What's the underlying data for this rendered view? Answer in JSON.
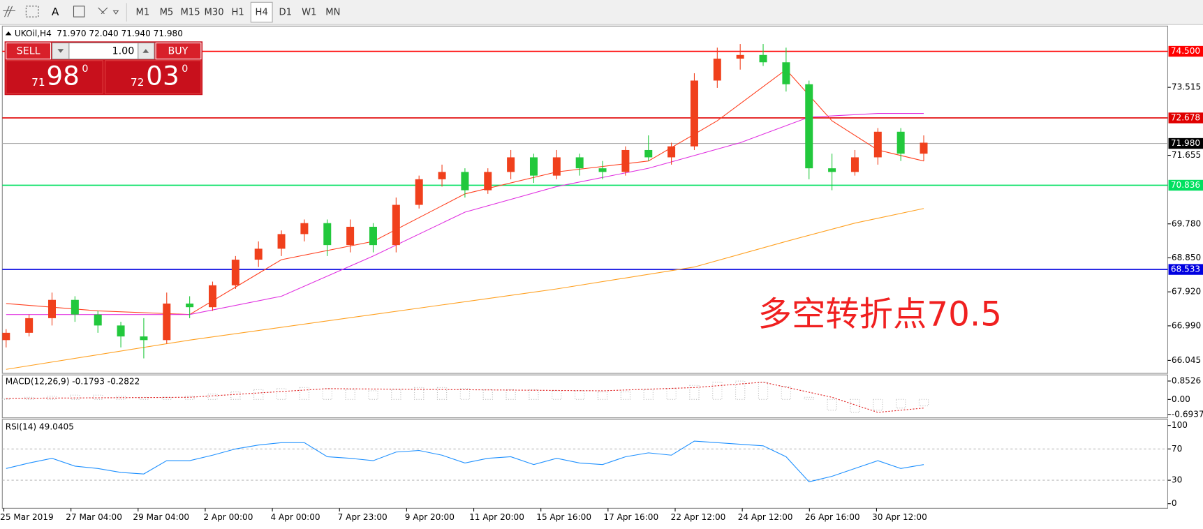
{
  "toolbar": {
    "timeframes": [
      "M1",
      "M5",
      "M15",
      "M30",
      "H1",
      "H4",
      "D1",
      "W1",
      "MN"
    ],
    "active_index": 5
  },
  "header": {
    "symbol": "UKOil,H4",
    "ohlc": "71.970 72.040 71.940 71.980"
  },
  "trade_panel": {
    "sell": "SELL",
    "buy": "BUY",
    "lot": "1.00",
    "sell_price": [
      "71",
      "98",
      "0"
    ],
    "buy_price": [
      "72",
      "03",
      "0"
    ]
  },
  "price_chart": {
    "ylim": [
      65.69,
      75.17
    ],
    "yticks": [
      73.515,
      71.655,
      {
        "value": 69.78,
        "label": "69.780"
      },
      {
        "value": 68.85,
        "label": "68.850"
      },
      {
        "value": 67.92,
        "label": "67.920"
      },
      {
        "value": 66.99,
        "label": "66.990"
      },
      66.045
    ],
    "levels": [
      {
        "value": 74.5,
        "label": "74.500",
        "color": "#ff0000"
      },
      {
        "value": 72.678,
        "label": "72.678",
        "color": "#e00000"
      },
      {
        "value": 71.98,
        "label": "71.980",
        "color": "#000000"
      },
      {
        "value": 70.836,
        "label": "70.836",
        "color": "#00e060"
      },
      {
        "value": 68.533,
        "label": "68.533",
        "color": "#0000e0"
      }
    ],
    "up_color": "#f0401c",
    "down_color": "#22c83c",
    "candles": [
      [
        66.6,
        66.9,
        66.4,
        66.8
      ],
      [
        66.8,
        67.3,
        66.7,
        67.2
      ],
      [
        67.2,
        67.9,
        67.0,
        67.7
      ],
      [
        67.7,
        67.8,
        67.1,
        67.3
      ],
      [
        67.3,
        67.4,
        66.8,
        67.0
      ],
      [
        67.0,
        67.1,
        66.4,
        66.7
      ],
      [
        66.7,
        67.2,
        66.1,
        66.6
      ],
      [
        66.6,
        67.9,
        66.5,
        67.6
      ],
      [
        67.6,
        67.8,
        67.2,
        67.5
      ],
      [
        67.5,
        68.2,
        67.4,
        68.1
      ],
      [
        68.1,
        68.9,
        68.0,
        68.8
      ],
      [
        68.8,
        69.3,
        68.6,
        69.1
      ],
      [
        69.1,
        69.6,
        68.9,
        69.5
      ],
      [
        69.5,
        69.9,
        69.3,
        69.8
      ],
      [
        69.8,
        69.9,
        68.9,
        69.2
      ],
      [
        69.2,
        69.9,
        69.0,
        69.7
      ],
      [
        69.7,
        69.8,
        69.0,
        69.2
      ],
      [
        69.2,
        70.5,
        69.0,
        70.3
      ],
      [
        70.3,
        71.1,
        70.2,
        71.0
      ],
      [
        71.0,
        71.4,
        70.8,
        71.2
      ],
      [
        71.2,
        71.3,
        70.5,
        70.7
      ],
      [
        70.7,
        71.3,
        70.6,
        71.2
      ],
      [
        71.2,
        71.8,
        71.0,
        71.6
      ],
      [
        71.6,
        71.7,
        70.9,
        71.1
      ],
      [
        71.1,
        71.8,
        71.0,
        71.6
      ],
      [
        71.6,
        71.7,
        71.1,
        71.3
      ],
      [
        71.3,
        71.5,
        71.0,
        71.2
      ],
      [
        71.2,
        71.9,
        71.1,
        71.8
      ],
      [
        71.8,
        72.2,
        71.5,
        71.6
      ],
      [
        71.6,
        72.0,
        71.4,
        71.9
      ],
      [
        71.9,
        73.9,
        71.8,
        73.7
      ],
      [
        73.7,
        74.6,
        73.5,
        74.3
      ],
      [
        74.3,
        74.7,
        74.0,
        74.4
      ],
      [
        74.4,
        74.7,
        74.1,
        74.2
      ],
      [
        74.2,
        74.6,
        73.4,
        73.6
      ],
      [
        73.6,
        73.7,
        71.0,
        71.3
      ],
      [
        71.3,
        71.7,
        70.7,
        71.2
      ],
      [
        71.2,
        71.8,
        71.1,
        71.6
      ],
      [
        71.6,
        72.4,
        71.4,
        72.3
      ],
      [
        72.3,
        72.4,
        71.5,
        71.7
      ],
      [
        71.7,
        72.2,
        71.5,
        72.0
      ]
    ],
    "moving_averages": [
      {
        "color": "#ff4020",
        "x": [
          0,
          4,
          8,
          12,
          16,
          20,
          24,
          28,
          31,
          34,
          36,
          38,
          40
        ],
        "values": [
          67.6,
          67.4,
          67.3,
          68.8,
          69.3,
          70.6,
          71.2,
          71.5,
          72.6,
          74.0,
          72.6,
          71.8,
          71.5
        ]
      },
      {
        "color": "#e030e0",
        "x": [
          0,
          4,
          8,
          12,
          16,
          20,
          24,
          28,
          32,
          35,
          38,
          40
        ],
        "values": [
          67.3,
          67.3,
          67.3,
          67.8,
          68.9,
          70.1,
          70.8,
          71.3,
          72.0,
          72.7,
          72.8,
          72.8
        ]
      },
      {
        "color": "#ffa020",
        "x": [
          0,
          8,
          16,
          24,
          30,
          34,
          37,
          40
        ],
        "values": [
          65.8,
          66.6,
          67.3,
          68.0,
          68.6,
          69.3,
          69.8,
          70.2
        ]
      }
    ],
    "annotation": "多空转折点70.5"
  },
  "macd": {
    "label": "MACD(12,26,9) -0.1793 -0.2822",
    "ylim": [
      -0.853,
      1.137
    ],
    "yticks": [
      0.8526,
      {
        "value": 0,
        "label": "0.00"
      },
      -0.6937
    ],
    "histogram": [
      0.05,
      0.1,
      0.15,
      0.2,
      0.2,
      0.15,
      0.1,
      0.1,
      0.15,
      0.25,
      0.35,
      0.45,
      0.5,
      0.55,
      0.5,
      0.45,
      0.4,
      0.45,
      0.55,
      0.55,
      0.5,
      0.45,
      0.45,
      0.45,
      0.4,
      0.4,
      0.35,
      0.35,
      0.45,
      0.5,
      0.65,
      0.8,
      0.85,
      0.8,
      0.6,
      0.1,
      -0.5,
      -0.6,
      -0.5,
      -0.4,
      -0.3
    ],
    "signal": {
      "x": [
        0,
        8,
        14,
        20,
        26,
        30,
        33,
        36,
        38,
        40
      ],
      "values": [
        0.05,
        0.1,
        0.5,
        0.45,
        0.4,
        0.55,
        0.8,
        0.1,
        -0.6,
        -0.4
      ]
    }
  },
  "rsi": {
    "label": "RSI(14) 49.0405",
    "ylim": [
      -5.9,
      107.8
    ],
    "yticks": [
      100,
      70,
      30,
      0
    ],
    "levels": [
      70,
      30
    ],
    "values": [
      45,
      52,
      58,
      48,
      45,
      40,
      38,
      55,
      55,
      62,
      70,
      75,
      78,
      78,
      60,
      58,
      55,
      66,
      68,
      62,
      52,
      58,
      60,
      50,
      58,
      52,
      50,
      60,
      65,
      62,
      80,
      78,
      76,
      74,
      60,
      28,
      35,
      45,
      55,
      45,
      50
    ]
  },
  "time_axis": [
    "25 Mar 2019",
    "27 Mar 04:00",
    "29 Mar 04:00",
    "2 Apr 00:00",
    "4 Apr 00:00",
    "7 Apr 23:00",
    "9 Apr 20:00",
    "11 Apr 20:00",
    "15 Apr 16:00",
    "17 Apr 16:00",
    "22 Apr 12:00",
    "24 Apr 12:00",
    "26 Apr 16:00",
    "30 Apr 12:00"
  ]
}
